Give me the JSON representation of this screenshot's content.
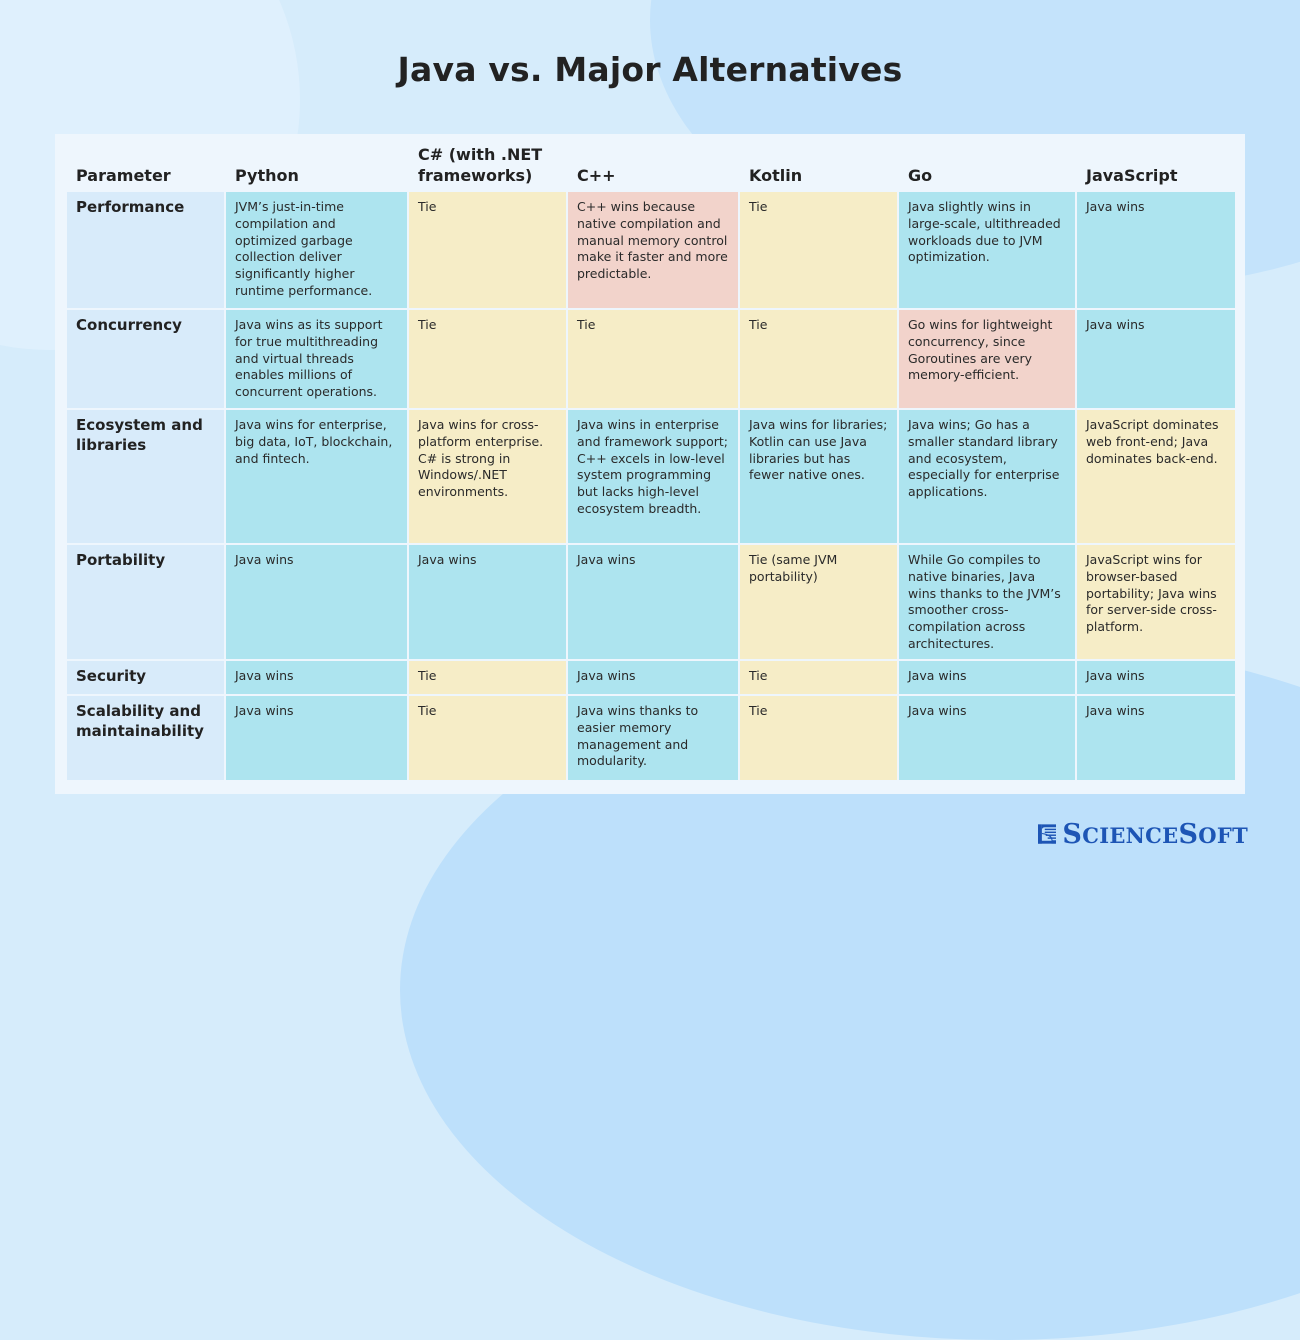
{
  "title": "Java vs. Major Alternatives",
  "colors": {
    "java_wins": "#ade4ef",
    "tie": "#f6edc7",
    "alternative_wins": "#f2d3cb",
    "parameter_column": "#d8ebfa",
    "brand": "#1d55b5"
  },
  "table": {
    "headers": [
      "Parameter",
      "Python",
      "C# (with .NET frameworks)",
      "C++",
      "Kotlin",
      "Go",
      "JavaScript"
    ],
    "rows": [
      {
        "parameter": "Performance",
        "cells": [
          {
            "text": "JVM’s just-in-time compilation and optimized garbage collection deliver significantly higher runtime performance.",
            "status": "win"
          },
          {
            "text": "Tie",
            "status": "tie"
          },
          {
            "text": "C++ wins because native compilation and manual memory control make it faster and more predictable.",
            "status": "lose"
          },
          {
            "text": "Tie",
            "status": "tie"
          },
          {
            "text": "Java slightly wins in large-scale, ultithreaded workloads due to JVM optimization.",
            "status": "win"
          },
          {
            "text": "Java wins",
            "status": "win"
          }
        ]
      },
      {
        "parameter": "Concurrency",
        "cells": [
          {
            "text": "Java wins as its support for true multithreading and virtual threads enables millions of concurrent operations.",
            "status": "win"
          },
          {
            "text": "Tie",
            "status": "tie"
          },
          {
            "text": "Tie",
            "status": "tie"
          },
          {
            "text": "Tie",
            "status": "tie"
          },
          {
            "text": "Go wins for lightweight concurrency, since Goroutines are very memory-efficient.",
            "status": "lose"
          },
          {
            "text": "Java wins",
            "status": "win"
          }
        ]
      },
      {
        "parameter": "Ecosystem and libraries",
        "cells": [
          {
            "text": "Java wins for enterprise, big data, IoT, blockchain, and fintech.",
            "status": "win"
          },
          {
            "text": "Java wins for cross-platform enterprise. C# is strong in Windows/.NET environments.",
            "status": "tie"
          },
          {
            "text": "Java wins in enterprise and framework support; C++ excels in low-level system programming but lacks high-level ecosystem breadth.",
            "status": "win"
          },
          {
            "text": "Java wins for libraries; Kotlin can use Java libraries but has fewer native ones.",
            "status": "win"
          },
          {
            "text": "Java wins; Go has a smaller standard library and ecosystem, especially for enterprise applications.",
            "status": "win"
          },
          {
            "text": "JavaScript dominates web front-end; Java dominates back-end.",
            "status": "tie"
          }
        ]
      },
      {
        "parameter": "Portability",
        "cells": [
          {
            "text": "Java wins",
            "status": "win"
          },
          {
            "text": "Java wins",
            "status": "win"
          },
          {
            "text": "Java wins",
            "status": "win"
          },
          {
            "text": "Tie (same JVM portability)",
            "status": "tie"
          },
          {
            "text": "While Go compiles to native binaries, Java wins thanks to the JVM’s smoother cross-compilation across architectures.",
            "status": "win"
          },
          {
            "text": "JavaScript wins for browser-based portability; Java wins for server-side cross-platform.",
            "status": "tie"
          }
        ]
      },
      {
        "parameter": "Security",
        "cells": [
          {
            "text": "Java wins",
            "status": "win"
          },
          {
            "text": "Tie",
            "status": "tie"
          },
          {
            "text": "Java wins",
            "status": "win"
          },
          {
            "text": "Tie",
            "status": "tie"
          },
          {
            "text": "Java wins",
            "status": "win"
          },
          {
            "text": "Java wins",
            "status": "win"
          }
        ]
      },
      {
        "parameter": "Scalability and maintainability",
        "cells": [
          {
            "text": "Java wins",
            "status": "win"
          },
          {
            "text": "Tie",
            "status": "tie"
          },
          {
            "text": "Java wins thanks to easier memory management and modularity.",
            "status": "win"
          },
          {
            "text": "Tie",
            "status": "tie"
          },
          {
            "text": "Java wins",
            "status": "win"
          },
          {
            "text": "Java wins",
            "status": "win"
          }
        ]
      }
    ]
  },
  "logo": {
    "icon": "sciencesoft-logo-icon",
    "text": "ScienceSoft"
  }
}
